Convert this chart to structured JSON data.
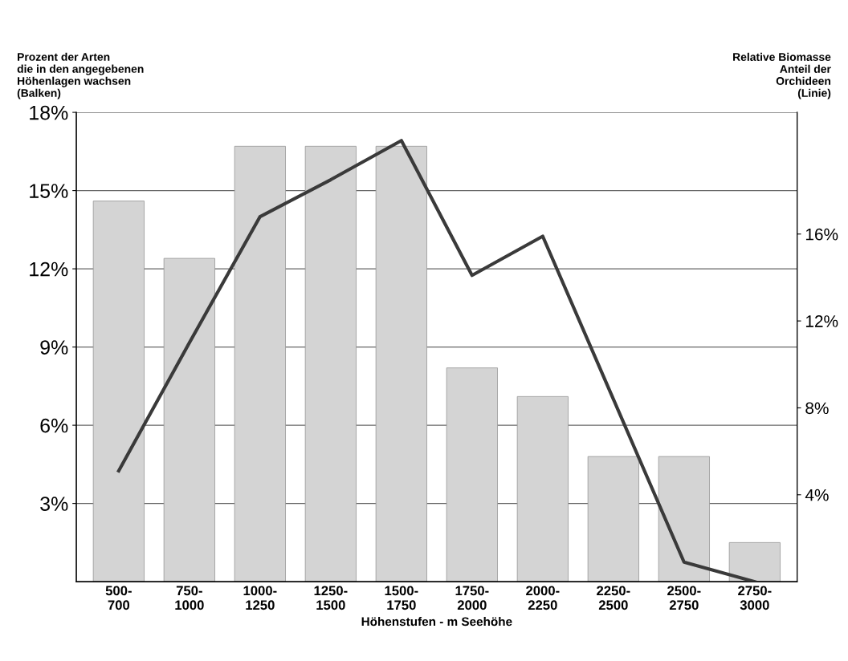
{
  "chart_data": {
    "type": "bar",
    "ylabel": "Prozent der Arten\ndie in den angegebenen\nHöhenlagen wachsen\n(Balken)",
    "y2label": "Relative Biomasse\nAnteil der\nOrchideen\n(Linie)",
    "xlabel": "Höhenstufen - m Seehöhe",
    "categories": [
      "500-\n700",
      "750-\n1000",
      "1000-\n1250",
      "1250-\n1500",
      "1500-\n1750",
      "1750-\n2000",
      "2000-\n2250",
      "2250-\n2500",
      "2500-\n2750",
      "2750-\n3000"
    ],
    "series": [
      {
        "color": "#d4d4d4",
        "values": [
          14.6,
          12.4,
          16.7,
          16.7,
          16.7,
          8.2,
          7.1,
          4.8,
          4.8,
          1.5
        ]
      },
      {
        "type": "line",
        "axis": "y2",
        "color": "#3a3a3a",
        "values": [
          5.1,
          11.0,
          16.8,
          18.5,
          20.3,
          14.1,
          15.9,
          8.4,
          0.9,
          0
        ]
      }
    ],
    "ylim": [
      0,
      18
    ],
    "yticks": [
      {
        "value": 3,
        "label": "3%"
      },
      {
        "value": 6,
        "label": "6%"
      },
      {
        "value": 9,
        "label": "9%"
      },
      {
        "value": 12,
        "label": "12%"
      },
      {
        "value": 15,
        "label": "15%"
      },
      {
        "value": 18,
        "label": "18%"
      }
    ],
    "y2lim": [
      0,
      21.6
    ],
    "y2ticks": [
      {
        "value": 4,
        "label": "4%"
      },
      {
        "value": 8,
        "label": "8%"
      },
      {
        "value": 12,
        "label": "12%"
      },
      {
        "value": 16,
        "label": "16%"
      }
    ],
    "grid": "y",
    "legend": false,
    "marker": "none",
    "line_style": "solid"
  }
}
